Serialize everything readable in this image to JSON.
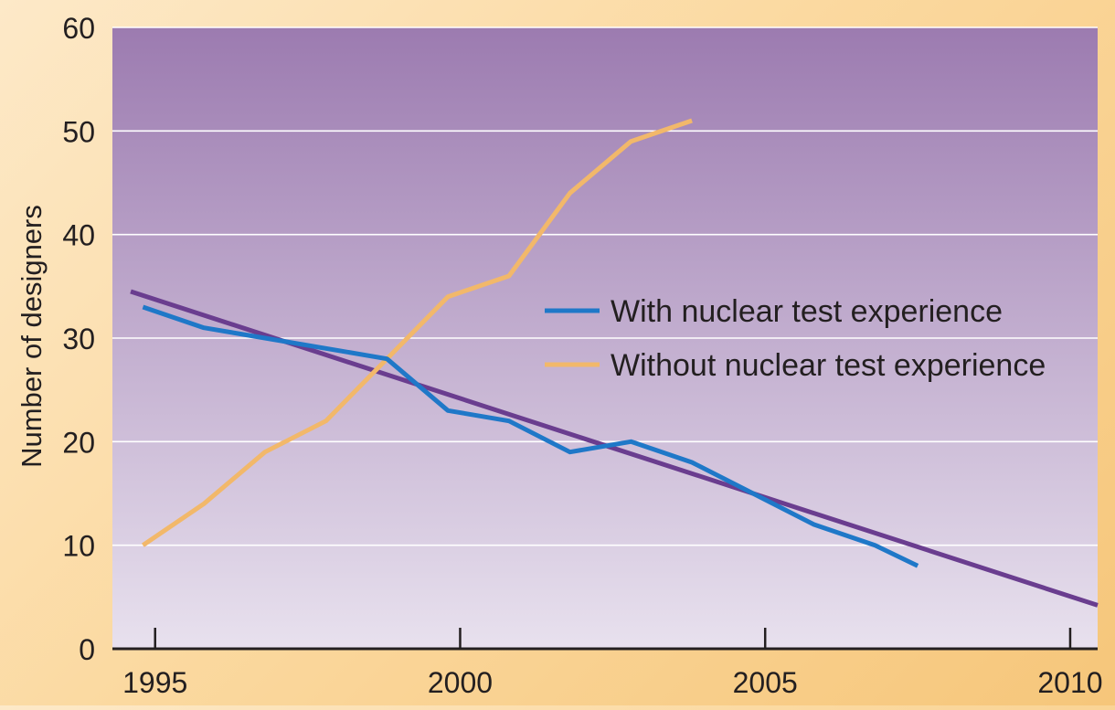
{
  "chart_data": {
    "type": "line",
    "ylabel": "Number of designers",
    "xlabel": "",
    "title": "",
    "xlim": [
      1994.3,
      2010.45
    ],
    "ylim": [
      0,
      60
    ],
    "x_ticks": [
      1995,
      2000,
      2005,
      2010
    ],
    "y_ticks": [
      0,
      10,
      20,
      30,
      40,
      50,
      60
    ],
    "grid": "horizontal",
    "legend_position": "right",
    "series": [
      {
        "name": "With nuclear test experience",
        "color": "#1f78c8",
        "x": [
          1994.8,
          1995.8,
          1996.8,
          1997.8,
          1998.8,
          1999.8,
          2000.8,
          2001.8,
          2002.8,
          2003.8,
          2004.8,
          2005.8,
          2006.8,
          2007.5
        ],
        "y": [
          33,
          31,
          30,
          29,
          28,
          23,
          22,
          19,
          20,
          18,
          15,
          12,
          10,
          8
        ]
      },
      {
        "name": "Without nuclear test experience",
        "color": "#f2b86a",
        "x": [
          1994.8,
          1995.8,
          1996.8,
          1997.8,
          1998.8,
          1999.8,
          2000.8,
          2001.8,
          2002.8,
          2003.8
        ],
        "y": [
          10,
          14,
          19,
          22,
          28,
          34,
          36,
          44,
          49,
          51
        ]
      }
    ],
    "trend_line": {
      "color": "#6a3d8f",
      "x": [
        1994.6,
        2010.45
      ],
      "y": [
        34.5,
        4.2
      ]
    }
  }
}
